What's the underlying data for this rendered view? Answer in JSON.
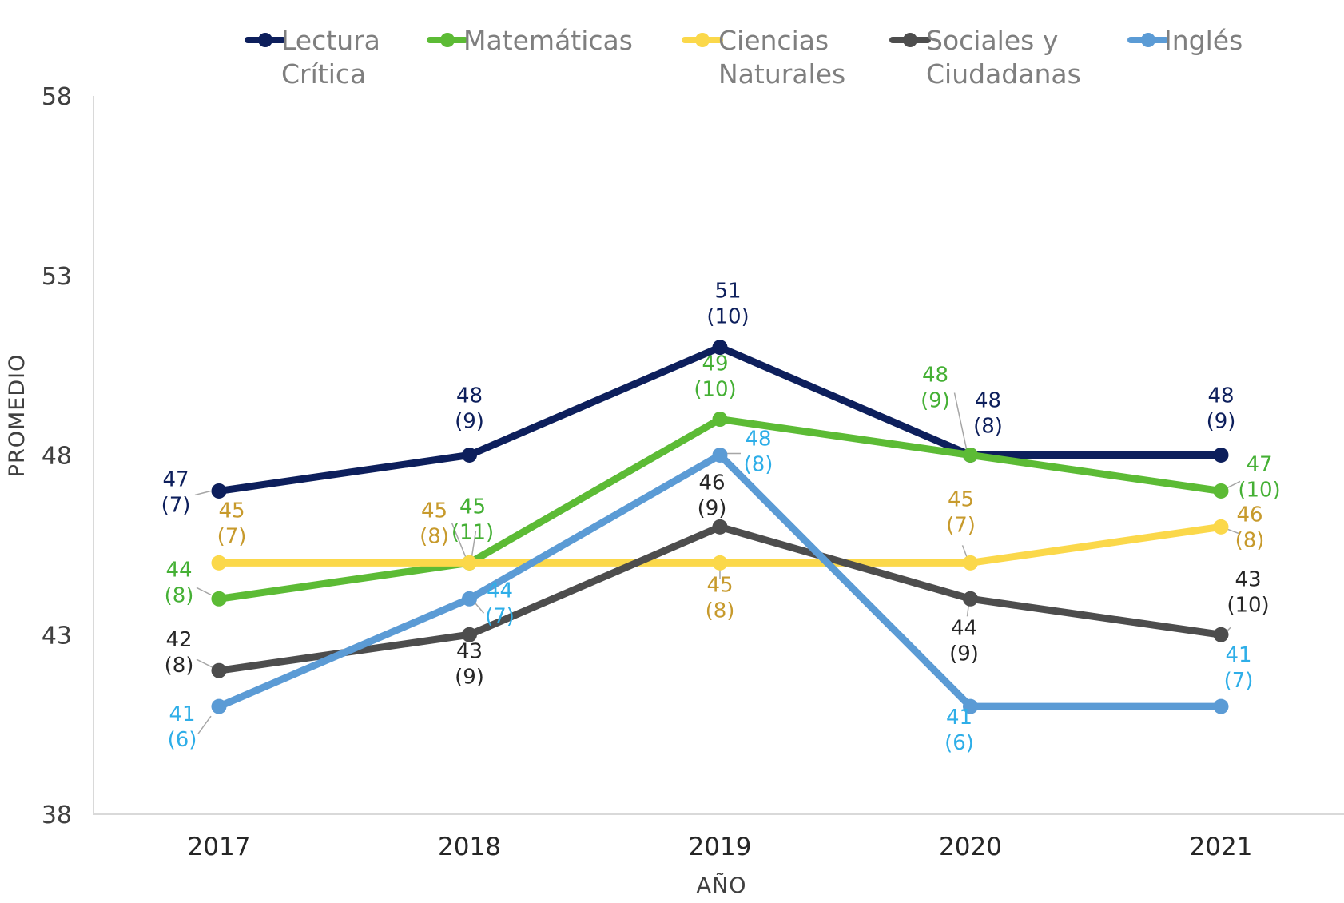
{
  "chart_data": {
    "type": "line",
    "x": [
      "2017",
      "2018",
      "2019",
      "2020",
      "2021"
    ],
    "ylim": [
      38,
      58
    ],
    "yticks": [
      "38",
      "43",
      "48",
      "53",
      "58"
    ],
    "xlabel": "AÑO",
    "ylabel": "PROMEDIO",
    "grid": false,
    "legend_position": "top",
    "series": [
      {
        "name": "Lectura Crítica",
        "color": "#0d1f5c",
        "label_color": "#0d1f5c",
        "values": [
          47,
          48,
          51,
          48,
          48
        ],
        "labels": [
          [
            "47",
            "(7)"
          ],
          [
            "48",
            "(9)"
          ],
          [
            "51",
            "(10)"
          ],
          [
            "48",
            "(8)"
          ],
          [
            "48",
            "(9)"
          ]
        ]
      },
      {
        "name": "Matemáticas",
        "color": "#5cbb35",
        "label_color": "#45b035",
        "values": [
          44,
          45,
          49,
          48,
          47
        ],
        "labels": [
          [
            "44",
            "(8)"
          ],
          [
            "45",
            "(11)"
          ],
          [
            "49",
            "(10)"
          ],
          [
            "48",
            "(9)"
          ],
          [
            "47",
            "(10)"
          ]
        ]
      },
      {
        "name": "Ciencias Naturales",
        "color": "#fbd84a",
        "label_color": "#c79a2c",
        "values": [
          45,
          45,
          45,
          45,
          46
        ],
        "labels": [
          [
            "45",
            "(7)"
          ],
          [
            "45",
            "(8)"
          ],
          [
            "45",
            "(8)"
          ],
          [
            "45",
            "(7)"
          ],
          [
            "46",
            "(8)"
          ]
        ]
      },
      {
        "name": "Sociales y Ciudadanas",
        "color": "#4d4d4d",
        "label_color": "#262626",
        "values": [
          42,
          43,
          46,
          44,
          43
        ],
        "labels": [
          [
            "42",
            "(8)"
          ],
          [
            "43",
            "(9)"
          ],
          [
            "46",
            "(9)"
          ],
          [
            "44",
            "(9)"
          ],
          [
            "43",
            "(10)"
          ]
        ]
      },
      {
        "name": "Inglés",
        "color": "#5b9bd5",
        "label_color": "#2eaee8",
        "values": [
          41,
          44,
          48,
          41,
          41
        ],
        "labels": [
          [
            "41",
            "(6)"
          ],
          [
            "44",
            "(7)"
          ],
          [
            "48",
            "(8)"
          ],
          [
            "41",
            "(6)"
          ],
          [
            "41",
            "(7)"
          ]
        ]
      }
    ]
  }
}
